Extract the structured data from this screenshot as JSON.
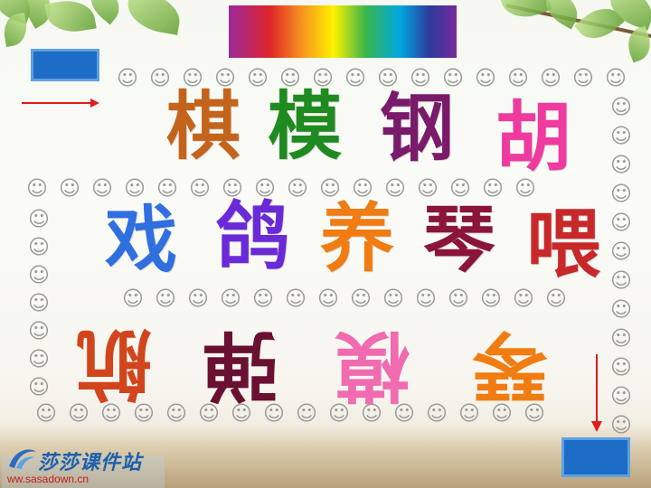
{
  "slide": {
    "row1": [
      {
        "char": "棋",
        "color": "#c4641c"
      },
      {
        "char": "模",
        "color": "#1f8a1f"
      },
      {
        "char": "钢",
        "color": "#7a1a6a"
      },
      {
        "char": "胡",
        "color": "#ef3aa0"
      }
    ],
    "row2": [
      {
        "char": "戏",
        "color": "#2f6fe0"
      },
      {
        "char": "鸽",
        "color": "#6a2ad8"
      },
      {
        "char": "养",
        "color": "#f07c12"
      },
      {
        "char": "琴",
        "color": "#8a1538"
      },
      {
        "char": "喂",
        "color": "#c9282a"
      }
    ],
    "row3_rotated": [
      {
        "char": "航",
        "color": "#d2451c"
      },
      {
        "char": "弹",
        "color": "#6a1030"
      },
      {
        "char": "模",
        "color": "#f06bb0"
      },
      {
        "char": "琴",
        "color": "#f07c12"
      }
    ],
    "border_face_icon": "monkey-face-icon",
    "border_face_glyph": "☺"
  },
  "logo": {
    "title": "莎莎课件站",
    "url": "ww.sasadown.cn"
  },
  "colors": {
    "button_blue": "#1d6dc6",
    "arrow_red": "#e11b1b"
  }
}
